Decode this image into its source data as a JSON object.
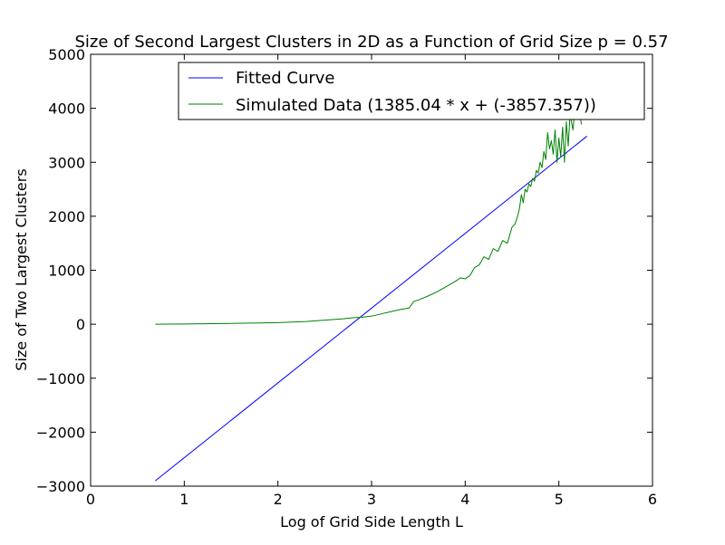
{
  "chart_data": {
    "type": "line",
    "title": "Size of Second Largest Clusters in 2D as a Function of Grid Size p = 0.57",
    "xlabel": "Log of Grid Side Length L",
    "ylabel": "Size of Two Largest Clusters",
    "xlim": [
      0,
      6
    ],
    "ylim": [
      -3000,
      5000
    ],
    "x_ticks": [
      0,
      1,
      2,
      3,
      4,
      5,
      6
    ],
    "y_ticks": [
      -3000,
      -2000,
      -1000,
      0,
      1000,
      2000,
      3000,
      4000,
      5000
    ],
    "x_tick_labels": [
      "0",
      "1",
      "2",
      "3",
      "4",
      "5",
      "6"
    ],
    "y_tick_labels": [
      "−3000",
      "−2000",
      "−1000",
      "0",
      "1000",
      "2000",
      "3000",
      "4000",
      "5000"
    ],
    "grid": false,
    "legend_position": "top-right",
    "series": [
      {
        "name": "Fitted Curve",
        "color": "#0000ff",
        "x": [
          0.69,
          5.3
        ],
        "y": [
          -2902,
          3483
        ]
      },
      {
        "name": "Simulated Data (1385.04 * x + (-3857.357))",
        "color": "#008000",
        "x": [
          0.69,
          1.0,
          1.5,
          2.0,
          2.3,
          2.5,
          2.7,
          2.8,
          2.9,
          3.0,
          3.1,
          3.2,
          3.3,
          3.4,
          3.45,
          3.5,
          3.6,
          3.7,
          3.8,
          3.9,
          3.95,
          4.0,
          4.05,
          4.1,
          4.15,
          4.2,
          4.25,
          4.3,
          4.35,
          4.4,
          4.45,
          4.5,
          4.53,
          4.56,
          4.58,
          4.6,
          4.62,
          4.64,
          4.66,
          4.68,
          4.7,
          4.72,
          4.74,
          4.76,
          4.78,
          4.8,
          4.82,
          4.84,
          4.86,
          4.88,
          4.9,
          4.92,
          4.94,
          4.96,
          4.98,
          5.0,
          5.02,
          5.04,
          5.06,
          5.08,
          5.1,
          5.12,
          5.15,
          5.18,
          5.2,
          5.22,
          5.24
        ],
        "y": [
          0,
          5,
          15,
          30,
          50,
          75,
          100,
          120,
          130,
          150,
          190,
          230,
          270,
          300,
          420,
          450,
          520,
          600,
          700,
          800,
          860,
          840,
          900,
          1050,
          1100,
          1250,
          1200,
          1400,
          1350,
          1550,
          1500,
          1800,
          1850,
          2000,
          2150,
          2400,
          2250,
          2500,
          2450,
          2600,
          2550,
          2700,
          2650,
          2850,
          2800,
          3000,
          2900,
          3200,
          3050,
          3550,
          3250,
          3400,
          3150,
          3600,
          3000,
          3450,
          3100,
          3650,
          3000,
          3750,
          3300,
          3900,
          3600,
          4100,
          3800,
          4000,
          3700
        ]
      }
    ]
  }
}
